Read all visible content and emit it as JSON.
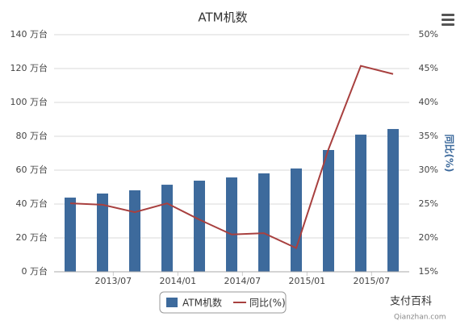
{
  "chart_data": {
    "type": "bar-line",
    "title": "ATM机数",
    "categories": [
      null,
      "2013/07",
      null,
      "2014/01",
      null,
      "2014/07",
      null,
      "2015/01",
      null,
      "2015/07",
      null
    ],
    "series": [
      {
        "name": "ATM机数",
        "type": "bar",
        "color": "#3d6a9c",
        "values": [
          43.8,
          46.2,
          48.1,
          51.4,
          53.8,
          55.7,
          58.1,
          61,
          71.9,
          81,
          84.3
        ]
      },
      {
        "name": "同比(%)",
        "type": "line",
        "axis": "y2",
        "color": "#a8403f",
        "values": [
          25.1,
          24.9,
          23.8,
          25.1,
          22.7,
          20.5,
          20.7,
          18.5,
          33.1,
          45.4,
          44.2
        ]
      }
    ],
    "ylim": [
      0,
      140
    ],
    "yticks": [
      {
        "value": 0,
        "label": "0 万台"
      },
      {
        "value": 20,
        "label": "20 万台"
      },
      {
        "value": 40,
        "label": "40 万台"
      },
      {
        "value": 60,
        "label": "60 万台"
      },
      {
        "value": 80,
        "label": "80 万台"
      },
      {
        "value": 100,
        "label": "100 万台"
      },
      {
        "value": 120,
        "label": "120 万台"
      },
      {
        "value": 140,
        "label": "140 万台"
      }
    ],
    "y2lim": [
      15,
      50
    ],
    "y2ticks": [
      {
        "value": 15,
        "label": "15%"
      },
      {
        "value": 20,
        "label": "20%"
      },
      {
        "value": 25,
        "label": "25%"
      },
      {
        "value": 30,
        "label": "30%"
      },
      {
        "value": 35,
        "label": "35%"
      },
      {
        "value": 40,
        "label": "40%"
      },
      {
        "value": 45,
        "label": "45%"
      },
      {
        "value": 50,
        "label": "50%"
      }
    ],
    "y2_label": "同比(%)",
    "grid": true,
    "legend": "bottom",
    "watermark": [
      "支付百科",
      "Qianzhan.com"
    ]
  }
}
